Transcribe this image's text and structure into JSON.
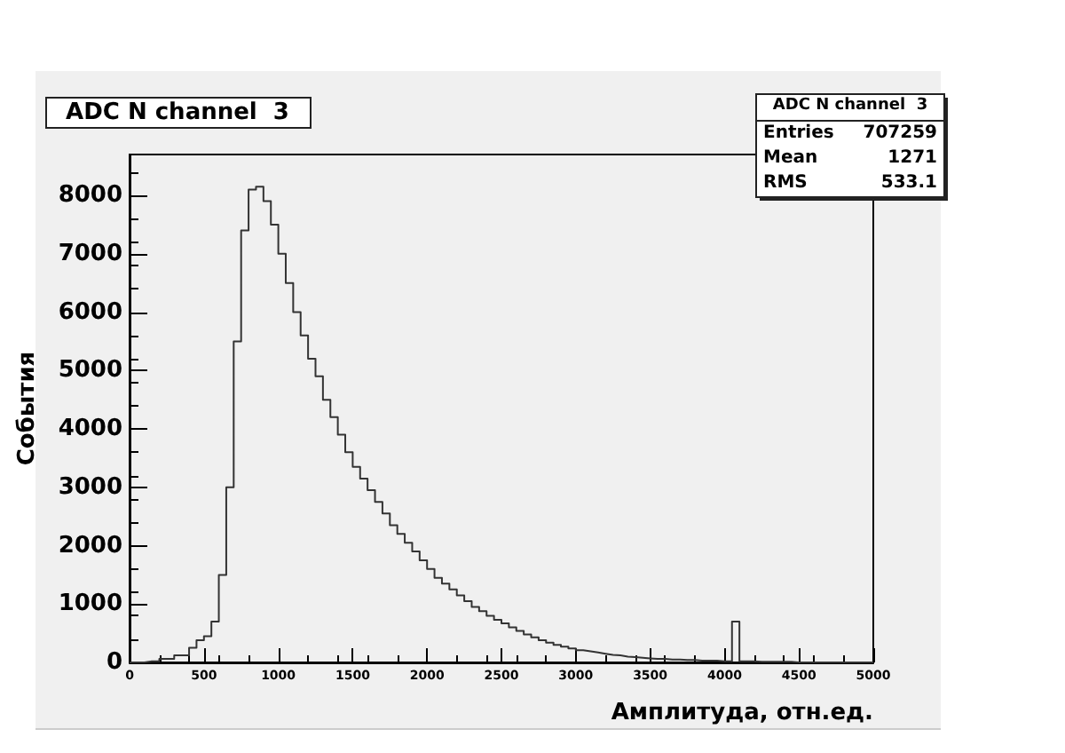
{
  "chart_data": {
    "type": "histogram",
    "title": "ADC N channel  3",
    "xlabel": "Амплитуда, отн.ед.",
    "ylabel": "События",
    "annotations": [
      "Entries 707259",
      "Mean 1271",
      "RMS 533.1"
    ],
    "bins": [
      0,
      50,
      100,
      150,
      200,
      250,
      300,
      350,
      400,
      450,
      500,
      550,
      600,
      650,
      700,
      750,
      800,
      850,
      900,
      950,
      1000,
      1050,
      1100,
      1150,
      1200,
      1250,
      1300,
      1350,
      1400,
      1450,
      1500,
      1550,
      1600,
      1650,
      1700,
      1750,
      1800,
      1850,
      1900,
      1950,
      2000,
      2050,
      2100,
      2150,
      2200,
      2250,
      2300,
      2350,
      2400,
      2450,
      2500,
      2550,
      2600,
      2650,
      2700,
      2750,
      2800,
      2850,
      2900,
      2950,
      3000,
      3050,
      3100,
      3150,
      3200,
      3250,
      3300,
      3350,
      3400,
      3450,
      3500,
      3550,
      3600,
      3650,
      3700,
      3750,
      3800,
      3850,
      3900,
      3950,
      4000,
      4050,
      4100,
      4150,
      4200,
      4250,
      4300,
      4350,
      4400,
      4450,
      4500,
      4550,
      4600,
      4650,
      4700,
      4750,
      4800,
      4850,
      4900,
      4950,
      5000
    ],
    "values": [
      0,
      0,
      20,
      20,
      60,
      60,
      120,
      120,
      250,
      380,
      450,
      700,
      1500,
      3000,
      5500,
      7400,
      8100,
      8150,
      7900,
      7500,
      7000,
      6500,
      6000,
      5600,
      5200,
      4900,
      4500,
      4200,
      3900,
      3600,
      3350,
      3150,
      2950,
      2750,
      2550,
      2350,
      2200,
      2050,
      1900,
      1750,
      1600,
      1450,
      1350,
      1250,
      1150,
      1050,
      950,
      880,
      800,
      730,
      670,
      600,
      540,
      480,
      430,
      380,
      340,
      300,
      270,
      240,
      210,
      190,
      170,
      150,
      130,
      120,
      100,
      90,
      80,
      70,
      60,
      60,
      50,
      50,
      40,
      40,
      30,
      30,
      30,
      20,
      20,
      700,
      20,
      20,
      10,
      10,
      10,
      10,
      10,
      0,
      0,
      0,
      0,
      0,
      0,
      0,
      0,
      0,
      0,
      0
    ],
    "color": "#333333",
    "xlim": [
      0,
      5000
    ],
    "ylim": [
      0,
      8700
    ],
    "xticks": [
      0,
      500,
      1000,
      1500,
      2000,
      2500,
      3000,
      3500,
      4000,
      4500,
      5000
    ],
    "yticks": [
      0,
      1000,
      2000,
      3000,
      4000,
      5000,
      6000,
      7000,
      8000
    ],
    "grid": false
  }
}
